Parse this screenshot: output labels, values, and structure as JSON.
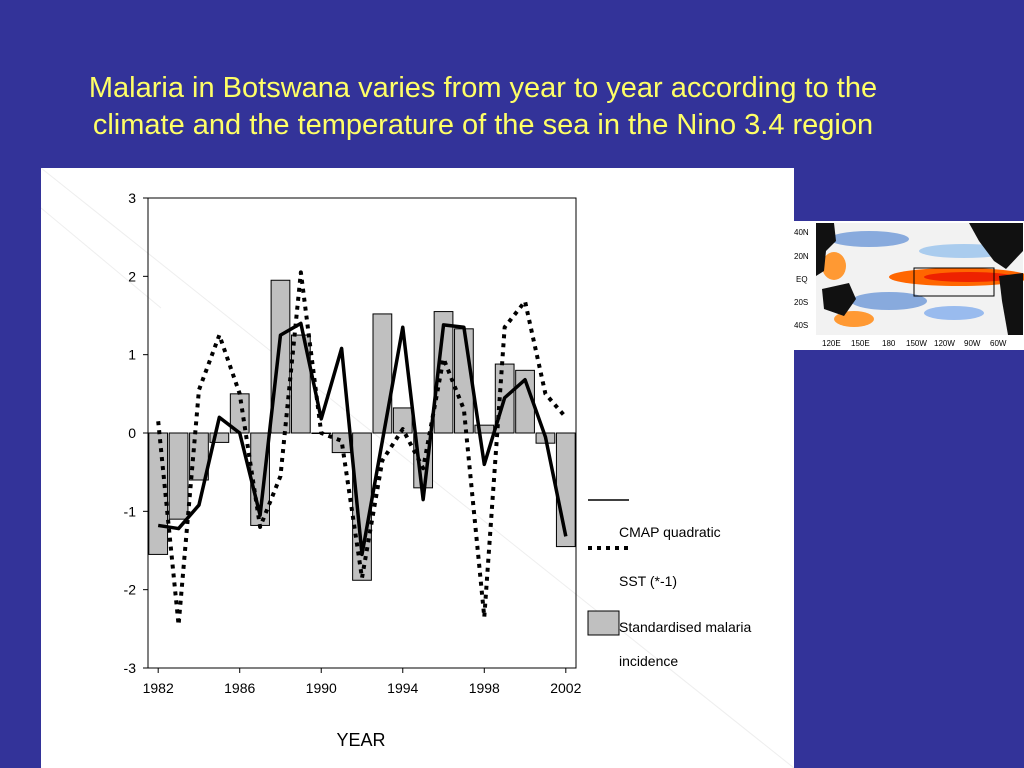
{
  "slide": {
    "title_line1": "Malaria in Botswana varies from year to year according to the",
    "title_line2": "climate and the temperature of the sea in the Nino 3.4 region",
    "background_color": "#333399",
    "title_color": "#ffff66"
  },
  "chart_data": {
    "type": "bar",
    "title": "",
    "xlabel": "YEAR",
    "ylabel": "",
    "ylim": [
      -3,
      3
    ],
    "xlim": [
      1981.5,
      2002.5
    ],
    "yticks": [
      "3",
      "2",
      "1",
      "0",
      "-1",
      "-2",
      "-3"
    ],
    "xticks": [
      "1982",
      "1986",
      "1990",
      "1994",
      "1998",
      "2002"
    ],
    "years": [
      1982,
      1983,
      1984,
      1985,
      1986,
      1987,
      1988,
      1989,
      1990,
      1991,
      1992,
      1993,
      1994,
      1995,
      1996,
      1997,
      1998,
      1999,
      2000,
      2001,
      2002
    ],
    "series": [
      {
        "name": "CMAP quadratic",
        "kind": "line",
        "style": "solid",
        "values": [
          -1.18,
          -1.22,
          -0.92,
          0.2,
          0.0,
          -1.05,
          1.25,
          1.4,
          0.18,
          1.08,
          -1.55,
          -0.1,
          1.35,
          -0.85,
          1.38,
          1.35,
          -0.4,
          0.45,
          0.68,
          -0.05,
          -1.32
        ]
      },
      {
        "name": "SST (*-1)",
        "kind": "line",
        "style": "dotted",
        "values": [
          0.15,
          -2.45,
          0.55,
          1.25,
          0.5,
          -1.2,
          -0.55,
          2.05,
          0.0,
          -0.1,
          -1.85,
          -0.35,
          0.05,
          -0.45,
          0.95,
          0.3,
          -2.35,
          1.35,
          1.68,
          0.5,
          0.2
        ]
      },
      {
        "name": "Standardised malaria incidence",
        "kind": "bar",
        "values": [
          -1.55,
          -1.1,
          -0.6,
          -0.12,
          0.5,
          -1.18,
          1.95,
          1.25,
          0.0,
          -0.25,
          -1.88,
          1.52,
          0.32,
          -0.7,
          1.55,
          1.33,
          0.1,
          0.88,
          0.8,
          -0.13,
          -1.45
        ]
      }
    ],
    "legend": {
      "placement": "right",
      "entries": [
        {
          "label_line1": "CMAP quadratic",
          "label_line2": ""
        },
        {
          "label_line1": "SST (*-1)",
          "label_line2": ""
        },
        {
          "label_line1": "Standardised malaria",
          "label_line2": "incidence"
        }
      ]
    },
    "bar_color": "#c0c0c0"
  },
  "inset_map": {
    "lat_labels": [
      "40N",
      "20N",
      "EQ",
      "20S",
      "40S"
    ],
    "lon_labels": [
      "120E",
      "150E",
      "180",
      "150W",
      "120W",
      "90W",
      "60W"
    ]
  }
}
